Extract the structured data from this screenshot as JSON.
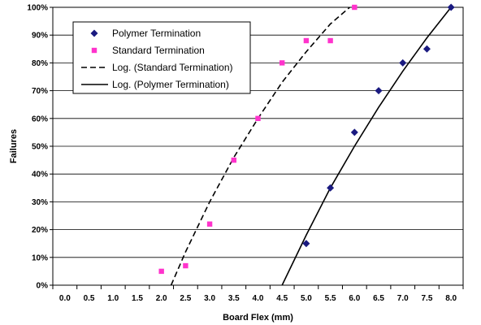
{
  "chart_data": {
    "type": "scatter",
    "xlabel": "Board Flex (mm)",
    "ylabel": "Failures",
    "xlim": [
      -0.25,
      8.25
    ],
    "ylim": [
      0,
      100
    ],
    "x_ticks": [
      "0.0",
      "0.5",
      "1.0",
      "1.5",
      "2.0",
      "2.5",
      "3.0",
      "3.5",
      "4.0",
      "4.5",
      "5.0",
      "5.5",
      "6.0",
      "6.5",
      "7.0",
      "7.5",
      "8.0"
    ],
    "y_ticks": [
      "0%",
      "10%",
      "20%",
      "30%",
      "40%",
      "50%",
      "60%",
      "70%",
      "80%",
      "90%",
      "100%"
    ],
    "grid": "horizontal",
    "legend_position": "top-left",
    "series": [
      {
        "name": "Polymer Termination",
        "kind": "scatter",
        "marker": "diamond",
        "color": "#1a1a80",
        "points": [
          {
            "x": 5.0,
            "y": 15
          },
          {
            "x": 5.5,
            "y": 35
          },
          {
            "x": 6.0,
            "y": 55
          },
          {
            "x": 6.5,
            "y": 70
          },
          {
            "x": 7.0,
            "y": 80
          },
          {
            "x": 7.5,
            "y": 85
          },
          {
            "x": 8.0,
            "y": 100
          }
        ]
      },
      {
        "name": "Standard Termination",
        "kind": "scatter",
        "marker": "square",
        "color": "#ff33cc",
        "points": [
          {
            "x": 2.0,
            "y": 5
          },
          {
            "x": 2.5,
            "y": 7
          },
          {
            "x": 3.0,
            "y": 22
          },
          {
            "x": 3.5,
            "y": 45
          },
          {
            "x": 4.0,
            "y": 60
          },
          {
            "x": 4.5,
            "y": 80
          },
          {
            "x": 5.0,
            "y": 88
          },
          {
            "x": 5.5,
            "y": 88
          },
          {
            "x": 6.0,
            "y": 100
          }
        ]
      },
      {
        "name": "Log. (Standard Termination)",
        "kind": "trendline",
        "style": "dashed",
        "color": "#000000",
        "points": [
          {
            "x": 2.2,
            "y": 0
          },
          {
            "x": 2.5,
            "y": 12
          },
          {
            "x": 3.0,
            "y": 30
          },
          {
            "x": 3.5,
            "y": 46
          },
          {
            "x": 4.0,
            "y": 60
          },
          {
            "x": 4.5,
            "y": 73
          },
          {
            "x": 5.0,
            "y": 84
          },
          {
            "x": 5.5,
            "y": 94
          },
          {
            "x": 5.9,
            "y": 100
          }
        ]
      },
      {
        "name": "Log. (Polymer Termination)",
        "kind": "trendline",
        "style": "solid",
        "color": "#000000",
        "points": [
          {
            "x": 4.5,
            "y": 0
          },
          {
            "x": 5.0,
            "y": 18
          },
          {
            "x": 5.5,
            "y": 35
          },
          {
            "x": 6.0,
            "y": 50
          },
          {
            "x": 6.5,
            "y": 64
          },
          {
            "x": 7.0,
            "y": 77
          },
          {
            "x": 7.5,
            "y": 89
          },
          {
            "x": 8.0,
            "y": 100
          }
        ]
      }
    ]
  }
}
